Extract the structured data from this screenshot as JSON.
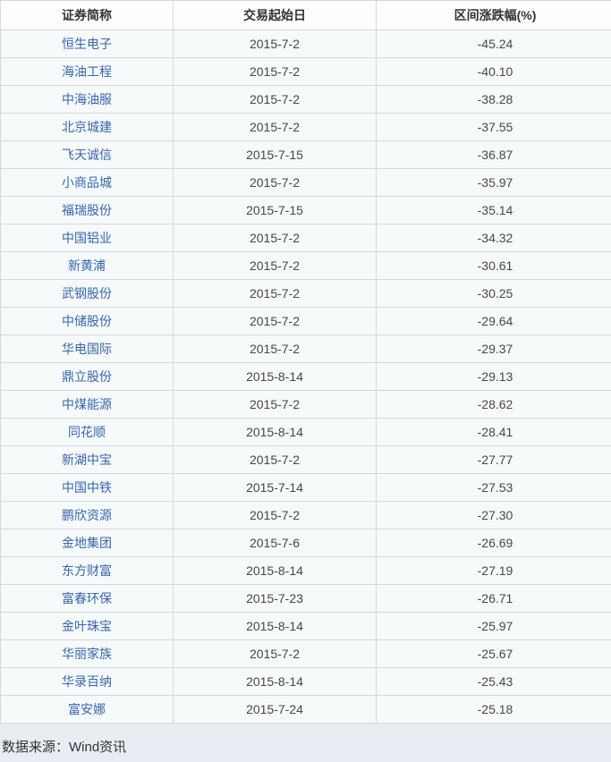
{
  "table": {
    "columns": [
      "证券简称",
      "交易起始日",
      "区间涨跌幅(%)"
    ],
    "rows": [
      {
        "name": "恒生电子",
        "date": "2015-7-2",
        "change": "-45.24"
      },
      {
        "name": "海油工程",
        "date": "2015-7-2",
        "change": "-40.10"
      },
      {
        "name": "中海油服",
        "date": "2015-7-2",
        "change": "-38.28"
      },
      {
        "name": "北京城建",
        "date": "2015-7-2",
        "change": "-37.55"
      },
      {
        "name": "飞天诚信",
        "date": "2015-7-15",
        "change": "-36.87"
      },
      {
        "name": "小商品城",
        "date": "2015-7-2",
        "change": "-35.97"
      },
      {
        "name": "福瑞股份",
        "date": "2015-7-15",
        "change": "-35.14"
      },
      {
        "name": "中国铝业",
        "date": "2015-7-2",
        "change": "-34.32"
      },
      {
        "name": "新黄浦",
        "date": "2015-7-2",
        "change": "-30.61"
      },
      {
        "name": "武钢股份",
        "date": "2015-7-2",
        "change": "-30.25"
      },
      {
        "name": "中储股份",
        "date": "2015-7-2",
        "change": "-29.64"
      },
      {
        "name": "华电国际",
        "date": "2015-7-2",
        "change": "-29.37"
      },
      {
        "name": "鼎立股份",
        "date": "2015-8-14",
        "change": "-29.13"
      },
      {
        "name": "中煤能源",
        "date": "2015-7-2",
        "change": "-28.62"
      },
      {
        "name": "同花顺",
        "date": "2015-8-14",
        "change": "-28.41"
      },
      {
        "name": "新湖中宝",
        "date": "2015-7-2",
        "change": "-27.77"
      },
      {
        "name": "中国中铁",
        "date": "2015-7-14",
        "change": "-27.53"
      },
      {
        "name": "鹏欣资源",
        "date": "2015-7-2",
        "change": "-27.30"
      },
      {
        "name": "金地集团",
        "date": "2015-7-6",
        "change": "-26.69"
      },
      {
        "name": "东方财富",
        "date": "2015-8-14",
        "change": "-27.19"
      },
      {
        "name": "富春环保",
        "date": "2015-7-23",
        "change": "-26.71"
      },
      {
        "name": "金叶珠宝",
        "date": "2015-8-14",
        "change": "-25.97"
      },
      {
        "name": "华丽家族",
        "date": "2015-7-2",
        "change": "-25.67"
      },
      {
        "name": "华录百纳",
        "date": "2015-8-14",
        "change": "-25.43"
      },
      {
        "name": "富安娜",
        "date": "2015-7-24",
        "change": "-25.18"
      }
    ]
  },
  "footer": {
    "source_label": "数据来源：Wind资讯"
  },
  "colors": {
    "link_blue": "#3566ad",
    "cell_text": "#474747",
    "header_text": "#333333",
    "row_background": "#f7fafb",
    "page_background": "#e7edf2",
    "border": "#d4d8db"
  }
}
